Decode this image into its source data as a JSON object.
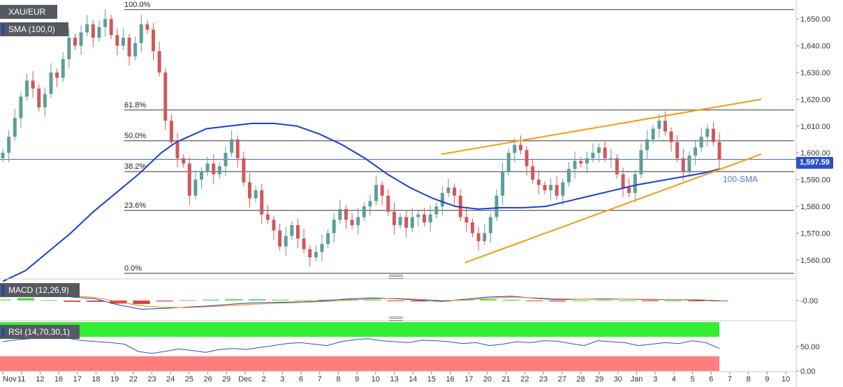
{
  "legend": {
    "symbol": "XAU/EUR",
    "sma": "SMA (100,0)",
    "macd": "MACD (12,26,9)",
    "rsi": "RSI (14,70,30,1)"
  },
  "price_label": "1,597.59",
  "annotation_sma": "100-SMA",
  "colors": {
    "up": "#5f9e98",
    "down": "#d0585a",
    "sma": "#1a3fd1",
    "channel": "#f39c12",
    "rsi_line": "#2a4fc7",
    "rsi_overbought": "#33ee33",
    "rsi_oversold": "#ff7d7d",
    "macd_line": "#1a3fd1",
    "macd_signal": "#f08000"
  },
  "chart_data": {
    "type": "candlestick",
    "title": "XAU/EUR",
    "y_ticks": [
      "1,560.00",
      "1,570.00",
      "1,580.00",
      "1,590.00",
      "1,600.00",
      "1,610.00",
      "1,620.00",
      "1,630.00",
      "1,640.00",
      "1,650.00"
    ],
    "ylim": [
      1555,
      1655
    ],
    "x_ticks": [
      "Nov",
      "11",
      "12",
      "16",
      "17",
      "18",
      "19",
      "22",
      "23",
      "24",
      "25",
      "26",
      "29",
      "Dec",
      "2",
      "3",
      "6",
      "7",
      "8",
      "9",
      "10",
      "13",
      "14",
      "15",
      "16",
      "17",
      "20",
      "21",
      "22",
      "23",
      "27",
      "28",
      "29",
      "30",
      "Jan",
      "3",
      "4",
      "5",
      "6",
      "7",
      "8",
      "9",
      "10"
    ],
    "fibonacci": [
      {
        "level": "100.0%",
        "price": 1653.5
      },
      {
        "level": "61.8%",
        "price": 1616.0
      },
      {
        "level": "50.0%",
        "price": 1604.5
      },
      {
        "level": "38.2%",
        "price": 1593.0
      },
      {
        "level": "23.6%",
        "price": 1578.5
      },
      {
        "level": "0.0%",
        "price": 1555.0
      }
    ],
    "last_price": 1597.59,
    "price_line": 1597.59,
    "closes": [
      1600,
      1606,
      1613,
      1621,
      1627,
      1624,
      1617,
      1622,
      1630,
      1628,
      1635,
      1643,
      1640,
      1645,
      1648,
      1643,
      1647,
      1650,
      1644,
      1640,
      1643,
      1636,
      1641,
      1648,
      1646,
      1638,
      1630,
      1612,
      1604,
      1598,
      1596,
      1584,
      1590,
      1593,
      1596,
      1592,
      1595,
      1600,
      1605,
      1598,
      1589,
      1583,
      1586,
      1577,
      1575,
      1571,
      1565,
      1569,
      1573,
      1568,
      1564,
      1561,
      1563,
      1566,
      1570,
      1575,
      1579,
      1575,
      1573,
      1576,
      1580,
      1582,
      1588,
      1584,
      1578,
      1573,
      1576,
      1572,
      1576,
      1577,
      1574,
      1577,
      1580,
      1585,
      1587,
      1584,
      1576,
      1574,
      1570,
      1567,
      1570,
      1576,
      1584,
      1593,
      1600,
      1603,
      1601,
      1595,
      1590,
      1588,
      1586,
      1588,
      1584,
      1589,
      1594,
      1597,
      1596,
      1598,
      1600,
      1602,
      1598,
      1598,
      1592,
      1587,
      1585,
      1592,
      1601,
      1605,
      1609,
      1612,
      1608,
      1604,
      1598,
      1593,
      1599,
      1602,
      1606,
      1609,
      1604,
      1597.59
    ],
    "sma_100": [
      1552,
      1556,
      1563,
      1570,
      1578,
      1585,
      1592,
      1600,
      1604,
      1609,
      1610,
      1611,
      1611,
      1610,
      1607,
      1603,
      1598,
      1592,
      1587,
      1583,
      1580,
      1579,
      1579.5,
      1579.5,
      1580,
      1582,
      1584,
      1586,
      1588,
      1589.5,
      1591,
      1592.5,
      1594
    ],
    "sma_x": [
      0,
      6,
      12,
      18,
      24,
      30,
      36,
      42,
      46,
      54,
      60,
      66,
      72,
      78,
      84,
      90,
      96,
      102,
      108,
      114,
      120,
      126,
      132,
      138,
      144,
      150,
      156,
      162,
      168,
      174,
      180,
      186,
      190
    ],
    "channel_upper": {
      "x": [
        74,
        128
      ],
      "y": [
        1599.5,
        1620
      ]
    },
    "channel_lower": {
      "x": [
        78,
        128
      ],
      "y": [
        1559,
        1599.5
      ]
    },
    "macd": {
      "ylim": [
        -0.04,
        0.04
      ],
      "tick": "-0.00",
      "macd_line": [
        0.01,
        0.018,
        0.015,
        0.008,
        0.004,
        -0.01,
        -0.02,
        -0.018,
        -0.015,
        -0.012,
        -0.008,
        -0.005,
        -0.004,
        -0.003,
        0.0,
        0.004,
        0.006,
        0.004,
        0.001,
        -0.002,
        0.003,
        0.008,
        0.01,
        0.005,
        0.002,
        0.003,
        0.004,
        0.003,
        0.002,
        0.002,
        0.001,
        -0.001
      ],
      "signal_line": [
        0.008,
        0.012,
        0.014,
        0.011,
        0.007,
        -0.003,
        -0.012,
        -0.016,
        -0.016,
        -0.014,
        -0.011,
        -0.008,
        -0.006,
        -0.004,
        -0.002,
        0.001,
        0.004,
        0.005,
        0.003,
        0.0,
        0.001,
        0.005,
        0.008,
        0.006,
        0.004,
        0.003,
        0.003,
        0.003,
        0.003,
        0.002,
        0.002,
        0.0
      ]
    },
    "rsi": {
      "ylim": [
        0,
        100
      ],
      "ticks": [
        "0.00",
        "50.00"
      ],
      "overbought": 70,
      "oversold": 30,
      "values": [
        60,
        64,
        66,
        70,
        72,
        66,
        62,
        60,
        58,
        55,
        40,
        36,
        40,
        45,
        42,
        38,
        44,
        46,
        44,
        48,
        52,
        56,
        58,
        55,
        52,
        60,
        64,
        66,
        62,
        60,
        58,
        63,
        62,
        60,
        56,
        58,
        52,
        55,
        60,
        58,
        62,
        61,
        56,
        52,
        62,
        60,
        58,
        52,
        55,
        58,
        56,
        62,
        58,
        46
      ]
    }
  }
}
